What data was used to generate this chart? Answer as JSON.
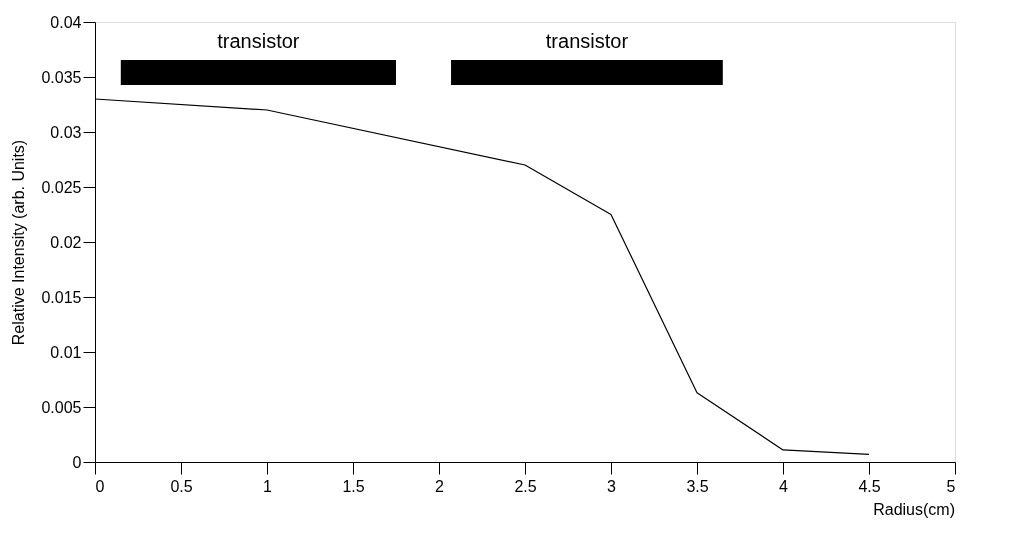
{
  "chart_data": {
    "type": "line",
    "xlabel": "Radius(cm)",
    "ylabel": "Relative Intensity (arb. Units)",
    "x": [
      0,
      1,
      2.5,
      3,
      3.5,
      4,
      4.5
    ],
    "series": [
      {
        "color": "#000000",
        "values": [
          0.033,
          0.032,
          0.027,
          0.0225,
          0.0063,
          0.0011,
          0.0007
        ]
      }
    ],
    "xlim": [
      0,
      5
    ],
    "xticks": [
      0,
      0.5,
      1,
      1.5,
      2,
      2.5,
      3,
      3.5,
      4,
      4.5,
      5
    ],
    "ylim": [
      0,
      0.04
    ],
    "yticks": [
      0,
      0.005,
      0.01,
      0.015,
      0.02,
      0.025,
      0.03,
      0.035,
      0.04
    ],
    "grid": false,
    "marker": "none",
    "line_style": "solid",
    "bands": [
      {
        "axis": "x",
        "from": 0.15,
        "to": 1.75,
        "label": "transistor",
        "color": "#000000"
      },
      {
        "axis": "x",
        "from": 2.07,
        "to": 3.65,
        "label": "transistor",
        "color": "#000000"
      }
    ]
  }
}
